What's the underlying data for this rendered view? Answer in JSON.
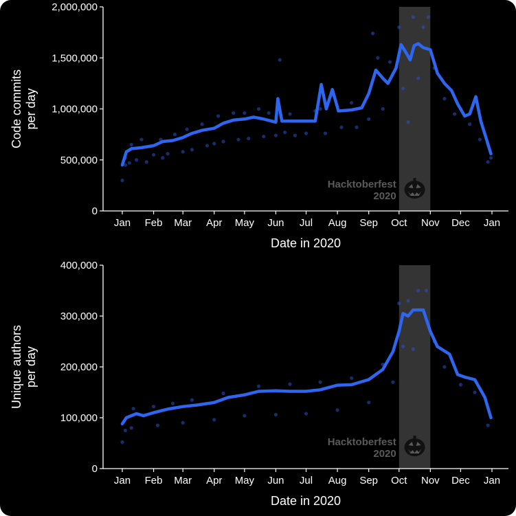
{
  "chart_data": [
    {
      "type": "line",
      "xlabel": "Date in 2020",
      "ylabel_lines": [
        "Code commits",
        "per day"
      ],
      "ylim": [
        0,
        2000000
      ],
      "yticks": [
        0,
        500000,
        1000000,
        1500000,
        2000000
      ],
      "ytick_labels": [
        "0",
        "500,000",
        "1,000,000",
        "1,500,000",
        "2,000,000"
      ],
      "xticks": [
        "Jan",
        "Feb",
        "Mar",
        "Apr",
        "May",
        "Jun",
        "Jul",
        "Aug",
        "Sep",
        "Oct",
        "Nov",
        "Dec",
        "Jan"
      ],
      "shaded_region": {
        "start": "2020-10-01",
        "end": "2020-10-31",
        "label_lines": [
          "Hacktoberfest",
          "2020"
        ],
        "icon": "jack-o-lantern-icon"
      },
      "series": [
        {
          "smooth_line": [
            [
              "2020-01-01",
              450000
            ],
            [
              "2020-01-05",
              580000
            ],
            [
              "2020-01-10",
              610000
            ],
            [
              "2020-01-20",
              620000
            ],
            [
              "2020-02-01",
              640000
            ],
            [
              "2020-02-10",
              680000
            ],
            [
              "2020-02-20",
              690000
            ],
            [
              "2020-03-01",
              720000
            ],
            [
              "2020-03-10",
              760000
            ],
            [
              "2020-03-20",
              790000
            ],
            [
              "2020-04-01",
              810000
            ],
            [
              "2020-04-10",
              860000
            ],
            [
              "2020-04-20",
              890000
            ],
            [
              "2020-05-01",
              900000
            ],
            [
              "2020-05-10",
              920000
            ],
            [
              "2020-05-20",
              900000
            ],
            [
              "2020-06-01",
              870000
            ],
            [
              "2020-06-03",
              1100000
            ],
            [
              "2020-06-07",
              880000
            ],
            [
              "2020-06-20",
              880000
            ],
            [
              "2020-07-01",
              880000
            ],
            [
              "2020-07-10",
              880000
            ],
            [
              "2020-07-16",
              1240000
            ],
            [
              "2020-07-21",
              1000000
            ],
            [
              "2020-07-27",
              1190000
            ],
            [
              "2020-08-02",
              980000
            ],
            [
              "2020-08-15",
              990000
            ],
            [
              "2020-08-25",
              1010000
            ],
            [
              "2020-09-01",
              1150000
            ],
            [
              "2020-09-08",
              1380000
            ],
            [
              "2020-09-15",
              1300000
            ],
            [
              "2020-09-20",
              1250000
            ],
            [
              "2020-09-28",
              1400000
            ],
            [
              "2020-10-03",
              1630000
            ],
            [
              "2020-10-08",
              1550000
            ],
            [
              "2020-10-12",
              1480000
            ],
            [
              "2020-10-16",
              1620000
            ],
            [
              "2020-10-20",
              1640000
            ],
            [
              "2020-10-25",
              1600000
            ],
            [
              "2020-11-01",
              1580000
            ],
            [
              "2020-11-08",
              1350000
            ],
            [
              "2020-11-15",
              1250000
            ],
            [
              "2020-11-22",
              1180000
            ],
            [
              "2020-11-28",
              1050000
            ],
            [
              "2020-12-05",
              930000
            ],
            [
              "2020-12-10",
              950000
            ],
            [
              "2020-12-16",
              1120000
            ],
            [
              "2020-12-21",
              880000
            ],
            [
              "2020-12-26",
              720000
            ],
            [
              "2020-12-31",
              560000
            ]
          ],
          "points": [
            [
              "2020-01-01",
              300000
            ],
            [
              "2020-01-04",
              520000
            ],
            [
              "2020-01-04",
              450000
            ],
            [
              "2020-01-08",
              470000
            ],
            [
              "2020-01-10",
              650000
            ],
            [
              "2020-01-15",
              500000
            ],
            [
              "2020-01-20",
              700000
            ],
            [
              "2020-01-25",
              480000
            ],
            [
              "2020-02-01",
              550000
            ],
            [
              "2020-02-08",
              700000
            ],
            [
              "2020-02-10",
              520000
            ],
            [
              "2020-02-15",
              560000
            ],
            [
              "2020-02-22",
              750000
            ],
            [
              "2020-03-01",
              580000
            ],
            [
              "2020-03-05",
              800000
            ],
            [
              "2020-03-10",
              600000
            ],
            [
              "2020-03-20",
              850000
            ],
            [
              "2020-03-25",
              640000
            ],
            [
              "2020-04-01",
              660000
            ],
            [
              "2020-04-05",
              930000
            ],
            [
              "2020-04-10",
              680000
            ],
            [
              "2020-04-20",
              960000
            ],
            [
              "2020-04-25",
              700000
            ],
            [
              "2020-05-01",
              960000
            ],
            [
              "2020-05-05",
              710000
            ],
            [
              "2020-05-15",
              1000000
            ],
            [
              "2020-05-20",
              730000
            ],
            [
              "2020-05-25",
              960000
            ],
            [
              "2020-06-01",
              740000
            ],
            [
              "2020-06-05",
              1480000
            ],
            [
              "2020-06-10",
              770000
            ],
            [
              "2020-06-15",
              950000
            ],
            [
              "2020-06-20",
              740000
            ],
            [
              "2020-07-01",
              760000
            ],
            [
              "2020-07-10",
              980000
            ],
            [
              "2020-07-15",
              1000000
            ],
            [
              "2020-07-20",
              760000
            ],
            [
              "2020-07-28",
              1130000
            ],
            [
              "2020-08-05",
              820000
            ],
            [
              "2020-08-15",
              1060000
            ],
            [
              "2020-08-20",
              820000
            ],
            [
              "2020-09-01",
              900000
            ],
            [
              "2020-09-05",
              1740000
            ],
            [
              "2020-09-10",
              1500000
            ],
            [
              "2020-09-15",
              1000000
            ],
            [
              "2020-09-22",
              1460000
            ],
            [
              "2020-10-01",
              1800000
            ],
            [
              "2020-10-05",
              1200000
            ],
            [
              "2020-10-10",
              870000
            ],
            [
              "2020-10-15",
              1900000
            ],
            [
              "2020-10-20",
              1300000
            ],
            [
              "2020-10-25",
              1800000
            ],
            [
              "2020-10-30",
              1900000
            ],
            [
              "2020-11-05",
              1400000
            ],
            [
              "2020-11-15",
              1100000
            ],
            [
              "2020-11-25",
              950000
            ],
            [
              "2020-12-01",
              1000000
            ],
            [
              "2020-12-10",
              850000
            ],
            [
              "2020-12-20",
              700000
            ],
            [
              "2020-12-28",
              480000
            ],
            [
              "2020-12-31",
              520000
            ]
          ]
        }
      ]
    },
    {
      "type": "line",
      "xlabel": "Date in 2020",
      "ylabel_lines": [
        "Unique authors",
        "per day"
      ],
      "ylim": [
        0,
        400000
      ],
      "yticks": [
        0,
        100000,
        200000,
        300000,
        400000
      ],
      "ytick_labels": [
        "0",
        "100,000",
        "200,000",
        "300,000",
        "400,000"
      ],
      "xticks": [
        "Jan",
        "Feb",
        "Mar",
        "Apr",
        "May",
        "Jun",
        "Jul",
        "Aug",
        "Sep",
        "Oct",
        "Nov",
        "Dec",
        "Jan"
      ],
      "shaded_region": {
        "start": "2020-10-01",
        "end": "2020-10-31",
        "label_lines": [
          "Hacktoberfest",
          "2020"
        ],
        "icon": "jack-o-lantern-icon"
      },
      "series": [
        {
          "smooth_line": [
            [
              "2020-01-01",
              88000
            ],
            [
              "2020-01-05",
              100000
            ],
            [
              "2020-01-10",
              104000
            ],
            [
              "2020-01-15",
              108000
            ],
            [
              "2020-01-22",
              104000
            ],
            [
              "2020-02-01",
              110000
            ],
            [
              "2020-02-15",
              117000
            ],
            [
              "2020-03-01",
              122000
            ],
            [
              "2020-03-15",
              125000
            ],
            [
              "2020-04-01",
              130000
            ],
            [
              "2020-04-15",
              140000
            ],
            [
              "2020-05-01",
              145000
            ],
            [
              "2020-05-15",
              152000
            ],
            [
              "2020-06-01",
              153000
            ],
            [
              "2020-06-15",
              152000
            ],
            [
              "2020-07-01",
              152000
            ],
            [
              "2020-07-15",
              155000
            ],
            [
              "2020-08-01",
              164000
            ],
            [
              "2020-08-15",
              165000
            ],
            [
              "2020-09-01",
              175000
            ],
            [
              "2020-09-15",
              195000
            ],
            [
              "2020-09-25",
              230000
            ],
            [
              "2020-10-01",
              270000
            ],
            [
              "2020-10-05",
              305000
            ],
            [
              "2020-10-10",
              300000
            ],
            [
              "2020-10-15",
              312000
            ],
            [
              "2020-10-25",
              312000
            ],
            [
              "2020-11-01",
              270000
            ],
            [
              "2020-11-08",
              240000
            ],
            [
              "2020-11-20",
              225000
            ],
            [
              "2020-11-28",
              185000
            ],
            [
              "2020-12-05",
              180000
            ],
            [
              "2020-12-15",
              175000
            ],
            [
              "2020-12-25",
              140000
            ],
            [
              "2020-12-31",
              100000
            ]
          ],
          "points": [
            [
              "2020-01-01",
              52000
            ],
            [
              "2020-01-04",
              75000
            ],
            [
              "2020-01-10",
              80000
            ],
            [
              "2020-01-12",
              118000
            ],
            [
              "2020-02-01",
              122000
            ],
            [
              "2020-02-05",
              85000
            ],
            [
              "2020-02-20",
              128000
            ],
            [
              "2020-03-01",
              90000
            ],
            [
              "2020-03-10",
              135000
            ],
            [
              "2020-04-01",
              96000
            ],
            [
              "2020-04-10",
              148000
            ],
            [
              "2020-05-01",
              104000
            ],
            [
              "2020-05-15",
              162000
            ],
            [
              "2020-06-01",
              106000
            ],
            [
              "2020-06-15",
              166000
            ],
            [
              "2020-07-01",
              108000
            ],
            [
              "2020-07-15",
              170000
            ],
            [
              "2020-08-01",
              115000
            ],
            [
              "2020-08-15",
              178000
            ],
            [
              "2020-09-01",
              130000
            ],
            [
              "2020-09-15",
              205000
            ],
            [
              "2020-09-25",
              170000
            ],
            [
              "2020-10-01",
              325000
            ],
            [
              "2020-10-05",
              240000
            ],
            [
              "2020-10-10",
              330000
            ],
            [
              "2020-10-15",
              235000
            ],
            [
              "2020-10-20",
              350000
            ],
            [
              "2020-10-28",
              350000
            ],
            [
              "2020-11-05",
              250000
            ],
            [
              "2020-11-15",
              200000
            ],
            [
              "2020-12-01",
              165000
            ],
            [
              "2020-12-15",
              150000
            ],
            [
              "2020-12-28",
              85000
            ]
          ]
        }
      ]
    }
  ]
}
